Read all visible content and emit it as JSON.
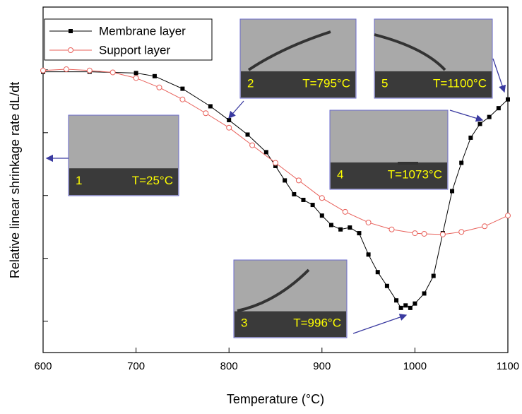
{
  "chart_data": {
    "type": "line",
    "x_label": "Temperature (°C)",
    "y_label": "Relative linear shrinkage rate dL/dt",
    "xlim": [
      600,
      1100
    ],
    "xticks": [
      600,
      700,
      800,
      900,
      1000,
      1100
    ],
    "ylim": [
      0,
      5.5
    ],
    "yticks": [
      0.5,
      1.5,
      2.5,
      3.5,
      4.5
    ],
    "legend": "upper left",
    "series": [
      {
        "name": "Membrane layer",
        "color": "#000000",
        "marker": "square",
        "x": [
          600,
          650,
          700,
          720,
          750,
          780,
          800,
          820,
          840,
          850,
          860,
          870,
          880,
          890,
          900,
          910,
          920,
          930,
          940,
          950,
          960,
          970,
          980,
          985,
          990,
          995,
          1000,
          1010,
          1020,
          1030,
          1040,
          1050,
          1060,
          1070,
          1080,
          1090,
          1100
        ],
        "values": [
          4.47,
          4.47,
          4.45,
          4.4,
          4.2,
          3.92,
          3.7,
          3.47,
          3.19,
          2.97,
          2.74,
          2.52,
          2.43,
          2.35,
          2.18,
          2.03,
          1.96,
          1.99,
          1.9,
          1.56,
          1.28,
          1.06,
          0.83,
          0.71,
          0.75,
          0.71,
          0.78,
          0.94,
          1.22,
          1.9,
          2.57,
          3.02,
          3.42,
          3.64,
          3.75,
          3.89,
          4.03
        ]
      },
      {
        "name": "Support layer",
        "color": "#e8605a",
        "marker": "circle",
        "x": [
          600,
          625,
          650,
          675,
          700,
          725,
          750,
          775,
          800,
          825,
          850,
          875,
          900,
          925,
          950,
          975,
          1000,
          1010,
          1030,
          1050,
          1075,
          1100
        ],
        "values": [
          4.49,
          4.51,
          4.49,
          4.46,
          4.37,
          4.22,
          4.03,
          3.81,
          3.58,
          3.3,
          3.02,
          2.74,
          2.46,
          2.24,
          2.07,
          1.96,
          1.9,
          1.89,
          1.88,
          1.92,
          2.01,
          2.18
        ]
      }
    ],
    "annotations": [
      {
        "number": "1",
        "label": "T=25°C"
      },
      {
        "number": "2",
        "label": "T=795°C"
      },
      {
        "number": "3",
        "label": "T=996°C"
      },
      {
        "number": "4",
        "label": "T=1073°C"
      },
      {
        "number": "5",
        "label": "T=1100°C"
      }
    ]
  }
}
